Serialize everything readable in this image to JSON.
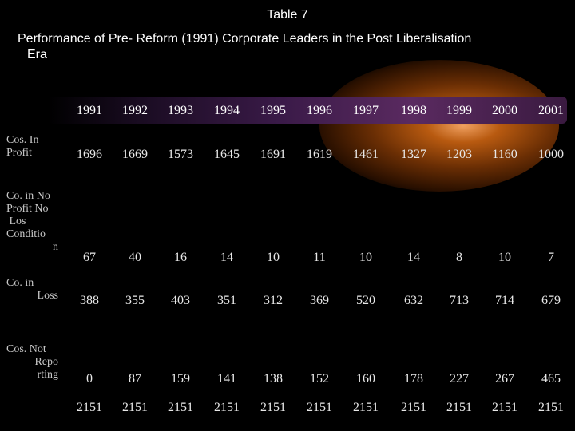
{
  "slide": {
    "title": "Table 7",
    "subtitle_line1": "Performance of Pre- Reform (1991) Corporate Leaders in the Post Liberalisation",
    "subtitle_line2": "Era"
  },
  "table": {
    "years": [
      "1991",
      "1992",
      "1993",
      "1994",
      "1995",
      "1996",
      "1997",
      "1998",
      "1999",
      "2000",
      "2001"
    ],
    "rows": [
      {
        "label_lines": [
          "Cos. In",
          "Profit"
        ],
        "values": [
          "1696",
          "1669",
          "1573",
          "1645",
          "1691",
          "1619",
          "1461",
          "1327",
          "1203",
          "1160",
          "1000"
        ]
      },
      {
        "label_lines": [
          "Co. in No",
          "Profit No",
          " Los",
          "Conditio",
          "n"
        ],
        "values": [
          "67",
          "40",
          "16",
          "14",
          "10",
          "11",
          "10",
          "14",
          "8",
          "10",
          "7"
        ]
      },
      {
        "label_lines": [
          "Co. in",
          "Loss"
        ],
        "values": [
          "388",
          "355",
          "403",
          "351",
          "312",
          "369",
          "520",
          "632",
          "713",
          "714",
          "679"
        ]
      },
      {
        "label_lines": [
          "Cos. Not",
          "Repo",
          "rting"
        ],
        "values": [
          "0",
          "87",
          "159",
          "141",
          "138",
          "152",
          "160",
          "178",
          "227",
          "267",
          "465"
        ]
      }
    ],
    "totals": [
      "2151",
      "2151",
      "2151",
      "2151",
      "2151",
      "2151",
      "2151",
      "2151",
      "2151",
      "2151",
      "2151"
    ]
  },
  "colors": {
    "background": "#000000",
    "glow": "#b85a10",
    "header_band": "#3a1a48",
    "text": "#ffffff"
  }
}
